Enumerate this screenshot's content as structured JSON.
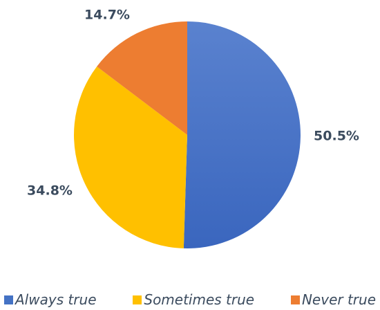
{
  "chart_data": {
    "type": "pie",
    "title": "",
    "series": [
      {
        "name": "Always true",
        "value": 50.5,
        "label": "50.5%",
        "color": "#4472c4"
      },
      {
        "name": "Sometimes true",
        "value": 34.8,
        "label": "34.8%",
        "color": "#ffc000"
      },
      {
        "name": "Never true",
        "value": 14.7,
        "label": "14.7%",
        "color": "#ed7d31"
      }
    ],
    "start_angle": "12 o'clock, clockwise",
    "legend_position": "bottom"
  }
}
